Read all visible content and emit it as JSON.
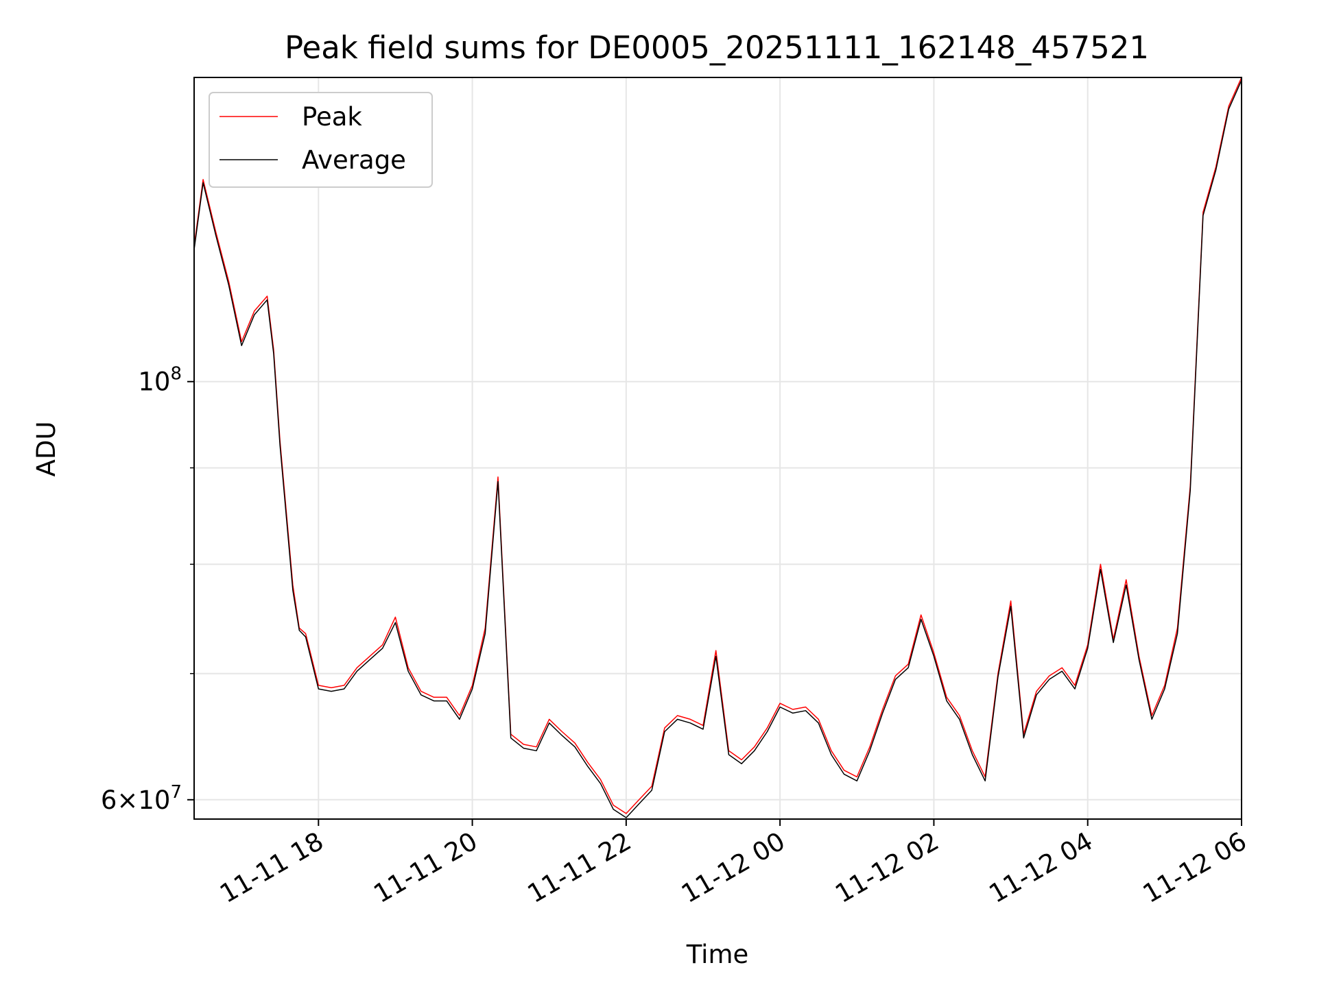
{
  "chart_data": {
    "type": "line",
    "title": "Peak field sums for DE0005_20251111_162148_457521",
    "xlabel": "Time",
    "ylabel": "ADU",
    "y_scale": "log",
    "ylim": [
      58600000,
      145000000
    ],
    "xlim": [
      "2025-11-11 16:23",
      "2025-11-12 06:00"
    ],
    "grid": true,
    "legend_position": "upper-left",
    "x_ticks": [
      "11-11 18",
      "11-11 20",
      "11-11 22",
      "11-12 00",
      "11-12 02",
      "11-12 04",
      "11-12 06"
    ],
    "y_ticks_major": [
      "10^8",
      "6×10^7"
    ],
    "y_ticks_minor": [
      70000000,
      80000000,
      90000000
    ],
    "colors": {
      "peak": "#ff0000",
      "average": "#000000",
      "grid": "#e6e6e6"
    },
    "x": [
      "2025-11-11 16:23",
      "2025-11-11 16:30",
      "2025-11-11 16:40",
      "2025-11-11 16:50",
      "2025-11-11 17:00",
      "2025-11-11 17:10",
      "2025-11-11 17:20",
      "2025-11-11 17:25",
      "2025-11-11 17:30",
      "2025-11-11 17:40",
      "2025-11-11 17:45",
      "2025-11-11 17:50",
      "2025-11-11 18:00",
      "2025-11-11 18:10",
      "2025-11-11 18:20",
      "2025-11-11 18:30",
      "2025-11-11 18:40",
      "2025-11-11 18:50",
      "2025-11-11 19:00",
      "2025-11-11 19:10",
      "2025-11-11 19:20",
      "2025-11-11 19:30",
      "2025-11-11 19:40",
      "2025-11-11 19:50",
      "2025-11-11 20:00",
      "2025-11-11 20:10",
      "2025-11-11 20:20",
      "2025-11-11 20:30",
      "2025-11-11 20:40",
      "2025-11-11 20:50",
      "2025-11-11 21:00",
      "2025-11-11 21:10",
      "2025-11-11 21:20",
      "2025-11-11 21:30",
      "2025-11-11 21:40",
      "2025-11-11 21:50",
      "2025-11-11 22:00",
      "2025-11-11 22:10",
      "2025-11-11 22:20",
      "2025-11-11 22:30",
      "2025-11-11 22:40",
      "2025-11-11 22:50",
      "2025-11-11 23:00",
      "2025-11-11 23:10",
      "2025-11-11 23:20",
      "2025-11-11 23:30",
      "2025-11-11 23:40",
      "2025-11-11 23:50",
      "2025-11-12 00:00",
      "2025-11-12 00:10",
      "2025-11-12 00:20",
      "2025-11-12 00:30",
      "2025-11-12 00:40",
      "2025-11-12 00:50",
      "2025-11-12 01:00",
      "2025-11-12 01:10",
      "2025-11-12 01:20",
      "2025-11-12 01:30",
      "2025-11-12 01:40",
      "2025-11-12 01:50",
      "2025-11-12 02:00",
      "2025-11-12 02:10",
      "2025-11-12 02:20",
      "2025-11-12 02:30",
      "2025-11-12 02:40",
      "2025-11-12 02:50",
      "2025-11-12 03:00",
      "2025-11-12 03:10",
      "2025-11-12 03:20",
      "2025-11-12 03:30",
      "2025-11-12 03:40",
      "2025-11-12 03:50",
      "2025-11-12 04:00",
      "2025-11-12 04:10",
      "2025-11-12 04:20",
      "2025-11-12 04:30",
      "2025-11-12 04:40",
      "2025-11-12 04:50",
      "2025-11-12 05:00",
      "2025-11-12 05:10",
      "2025-11-12 05:20",
      "2025-11-12 05:30",
      "2025-11-12 05:40",
      "2025-11-12 05:50",
      "2025-11-12 06:00"
    ],
    "series": [
      {
        "name": "Peak",
        "values": [
          118000000,
          128000000,
          120000000,
          113000000,
          105000000,
          109000000,
          111000000,
          104000000,
          93000000,
          78000000,
          74000000,
          73500000,
          69000000,
          68800000,
          69000000,
          70500000,
          71500000,
          72500000,
          75000000,
          70500000,
          68500000,
          68000000,
          68000000,
          66500000,
          69000000,
          74000000,
          89000000,
          65000000,
          64200000,
          64000000,
          66200000,
          65200000,
          64300000,
          62800000,
          61500000,
          59600000,
          59000000,
          60000000,
          61000000,
          65500000,
          66500000,
          66200000,
          65700000,
          72000000,
          63700000,
          63000000,
          64000000,
          65500000,
          67500000,
          67000000,
          67200000,
          66200000,
          63700000,
          62200000,
          61700000,
          64000000,
          67000000,
          69800000,
          70800000,
          75200000,
          71800000,
          68000000,
          66500000,
          63700000,
          61700000,
          70000000,
          76500000,
          65000000,
          68500000,
          69800000,
          70500000,
          69000000,
          72500000,
          80000000,
          73000000,
          78500000,
          71500000,
          66500000,
          69000000,
          74000000,
          88000000,
          123000000,
          130000000,
          140000000,
          145000000
        ]
      },
      {
        "name": "Average",
        "values": [
          117500000,
          127500000,
          119500000,
          112500000,
          104500000,
          108500000,
          110500000,
          103500000,
          92500000,
          77500000,
          73800000,
          73200000,
          68700000,
          68500000,
          68700000,
          70200000,
          71200000,
          72200000,
          74500000,
          70200000,
          68200000,
          67700000,
          67700000,
          66200000,
          68700000,
          73500000,
          88500000,
          64700000,
          63900000,
          63700000,
          65900000,
          64900000,
          64000000,
          62500000,
          61200000,
          59300000,
          58700000,
          59700000,
          60700000,
          65200000,
          66200000,
          65900000,
          65400000,
          71500000,
          63400000,
          62700000,
          63700000,
          65200000,
          67200000,
          66700000,
          66900000,
          65900000,
          63400000,
          61900000,
          61400000,
          63700000,
          66700000,
          69500000,
          70500000,
          74800000,
          71500000,
          67700000,
          66200000,
          63400000,
          61400000,
          69700000,
          76000000,
          64700000,
          68200000,
          69500000,
          70200000,
          68700000,
          72200000,
          79500000,
          72700000,
          78000000,
          71200000,
          66200000,
          68700000,
          73500000,
          87500000,
          122500000,
          129500000,
          139500000,
          144500000
        ]
      }
    ]
  }
}
